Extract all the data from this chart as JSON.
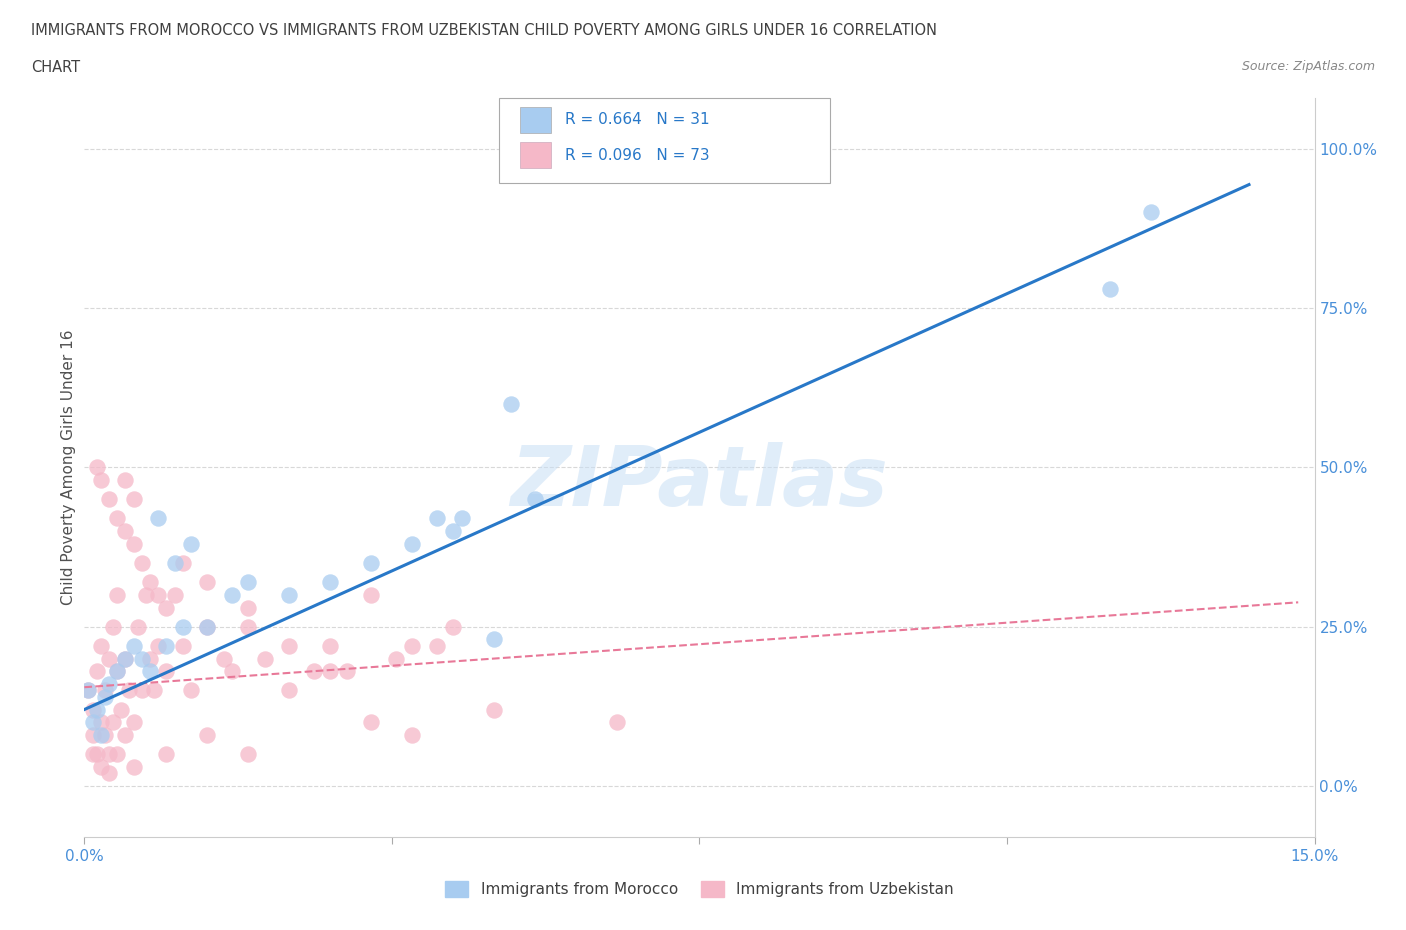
{
  "title_line1": "IMMIGRANTS FROM MOROCCO VS IMMIGRANTS FROM UZBEKISTAN CHILD POVERTY AMONG GIRLS UNDER 16 CORRELATION",
  "title_line2": "CHART",
  "source": "Source: ZipAtlas.com",
  "ylabel": "Child Poverty Among Girls Under 16",
  "xlim": [
    0.0,
    15.0
  ],
  "ylim": [
    -8.0,
    108.0
  ],
  "yticks": [
    0.0,
    25.0,
    50.0,
    75.0,
    100.0
  ],
  "morocco_color": "#a8ccf0",
  "uzbekistan_color": "#f5b8c8",
  "morocco_line_color": "#2878c8",
  "uzbekistan_line_color": "#e87898",
  "morocco_R": 0.664,
  "morocco_N": 31,
  "uzbekistan_R": 0.096,
  "uzbekistan_N": 73,
  "watermark": "ZIPatlas",
  "legend_label1": "Immigrants from Morocco",
  "legend_label2": "Immigrants from Uzbekistan",
  "morocco_scatter_x": [
    0.05,
    0.1,
    0.15,
    0.2,
    0.25,
    0.3,
    0.4,
    0.5,
    0.6,
    0.7,
    0.8,
    1.0,
    1.2,
    1.5,
    1.8,
    2.0,
    2.5,
    3.0,
    3.5,
    4.0,
    4.5,
    5.0,
    5.5,
    4.3,
    5.2,
    12.5,
    13.0,
    4.6,
    1.3,
    1.1,
    0.9
  ],
  "morocco_scatter_y": [
    15,
    10,
    12,
    8,
    14,
    16,
    18,
    20,
    22,
    20,
    18,
    22,
    25,
    25,
    30,
    32,
    30,
    32,
    35,
    38,
    40,
    23,
    45,
    42,
    60,
    78,
    90,
    42,
    38,
    35,
    42
  ],
  "uzbekistan_scatter_x": [
    0.05,
    0.1,
    0.1,
    0.15,
    0.15,
    0.2,
    0.2,
    0.25,
    0.25,
    0.3,
    0.3,
    0.35,
    0.35,
    0.4,
    0.4,
    0.45,
    0.5,
    0.5,
    0.55,
    0.6,
    0.6,
    0.65,
    0.7,
    0.75,
    0.8,
    0.85,
    0.9,
    1.0,
    1.1,
    1.2,
    1.3,
    1.5,
    1.7,
    1.8,
    2.0,
    2.2,
    2.5,
    2.8,
    3.0,
    3.2,
    3.5,
    4.0,
    4.5,
    0.15,
    0.2,
    0.3,
    0.4,
    0.5,
    0.6,
    0.7,
    0.8,
    0.9,
    1.0,
    1.2,
    1.5,
    2.0,
    2.5,
    3.0,
    0.1,
    0.2,
    0.3,
    0.4,
    0.5,
    0.6,
    1.0,
    1.5,
    2.0,
    3.5,
    4.0,
    5.0,
    6.5,
    3.8,
    4.3
  ],
  "uzbekistan_scatter_y": [
    15,
    8,
    12,
    5,
    18,
    10,
    22,
    8,
    15,
    20,
    5,
    25,
    10,
    18,
    30,
    12,
    20,
    40,
    15,
    45,
    10,
    25,
    15,
    30,
    20,
    15,
    22,
    18,
    30,
    22,
    15,
    25,
    20,
    18,
    25,
    20,
    15,
    18,
    22,
    18,
    30,
    22,
    25,
    50,
    48,
    45,
    42,
    48,
    38,
    35,
    32,
    30,
    28,
    35,
    32,
    28,
    22,
    18,
    5,
    3,
    2,
    5,
    8,
    3,
    5,
    8,
    5,
    10,
    8,
    12,
    10,
    20,
    22
  ],
  "background_color": "#ffffff",
  "grid_color": "#d8d8d8",
  "title_color": "#404040",
  "axis_label_color": "#505050",
  "tick_label_color": "#4a90d9",
  "legend_r_color": "#2878c8"
}
